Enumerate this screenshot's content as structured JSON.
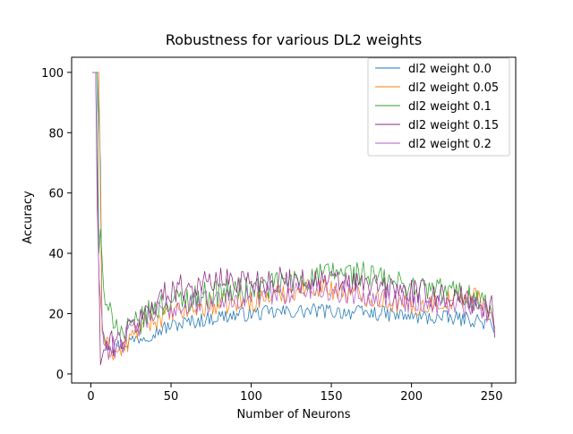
{
  "chart_data": {
    "type": "line",
    "title": "Robustness for various DL2 weights",
    "xlabel": "Number of Neurons",
    "ylabel": "Accuracy",
    "xlim": [
      -12,
      265
    ],
    "ylim": [
      -3,
      105
    ],
    "xticks": [
      0,
      50,
      100,
      150,
      200,
      250
    ],
    "yticks": [
      0,
      20,
      40,
      60,
      80,
      100
    ],
    "grid": false,
    "legend_position": "top-right",
    "x_range": [
      1,
      252
    ],
    "series": [
      {
        "name": "dl2 weight 0.0",
        "color": "#1f77b4",
        "anchors": [
          [
            1,
            100
          ],
          [
            4,
            100
          ],
          [
            6,
            70
          ],
          [
            7,
            15
          ],
          [
            10,
            10
          ],
          [
            15,
            9
          ],
          [
            20,
            10
          ],
          [
            25,
            11
          ],
          [
            30,
            12
          ],
          [
            40,
            14
          ],
          [
            50,
            16
          ],
          [
            60,
            17
          ],
          [
            70,
            18
          ],
          [
            80,
            19
          ],
          [
            100,
            20
          ],
          [
            120,
            20.5
          ],
          [
            140,
            21
          ],
          [
            160,
            20.5
          ],
          [
            180,
            20
          ],
          [
            200,
            19
          ],
          [
            220,
            18.5
          ],
          [
            240,
            18
          ],
          [
            250,
            16
          ],
          [
            252,
            13
          ]
        ],
        "noise": 2.5
      },
      {
        "name": "dl2 weight 0.05",
        "color": "#ff7f0e",
        "anchors": [
          [
            1,
            100
          ],
          [
            5,
            100
          ],
          [
            6,
            60
          ],
          [
            7,
            14
          ],
          [
            10,
            9
          ],
          [
            15,
            7
          ],
          [
            20,
            8
          ],
          [
            25,
            12
          ],
          [
            30,
            15
          ],
          [
            40,
            18
          ],
          [
            50,
            20
          ],
          [
            60,
            21
          ],
          [
            70,
            22
          ],
          [
            80,
            23
          ],
          [
            100,
            24
          ],
          [
            120,
            27
          ],
          [
            140,
            29
          ],
          [
            160,
            27
          ],
          [
            180,
            25
          ],
          [
            200,
            22
          ],
          [
            220,
            24
          ],
          [
            240,
            26
          ],
          [
            250,
            20
          ],
          [
            252,
            14
          ]
        ],
        "noise": 3.5
      },
      {
        "name": "dl2 weight 0.1",
        "color": "#2ca02c",
        "anchors": [
          [
            1,
            100
          ],
          [
            4,
            100
          ],
          [
            5,
            40
          ],
          [
            6,
            48
          ],
          [
            8,
            28
          ],
          [
            10,
            20
          ],
          [
            15,
            19
          ],
          [
            20,
            13
          ],
          [
            30,
            17
          ],
          [
            40,
            22
          ],
          [
            50,
            24
          ],
          [
            60,
            25
          ],
          [
            80,
            27
          ],
          [
            100,
            28
          ],
          [
            120,
            30
          ],
          [
            140,
            32
          ],
          [
            155,
            34
          ],
          [
            170,
            33
          ],
          [
            190,
            30
          ],
          [
            210,
            28
          ],
          [
            230,
            27
          ],
          [
            245,
            24
          ],
          [
            250,
            20
          ],
          [
            252,
            15
          ]
        ],
        "noise": 4.5
      },
      {
        "name": "dl2 weight 0.15",
        "color": "#8b2a7f",
        "anchors": [
          [
            1,
            100
          ],
          [
            3,
            100
          ],
          [
            4,
            55
          ],
          [
            5,
            35
          ],
          [
            6,
            3
          ],
          [
            8,
            8
          ],
          [
            12,
            10
          ],
          [
            20,
            12
          ],
          [
            30,
            18
          ],
          [
            40,
            24
          ],
          [
            50,
            28
          ],
          [
            60,
            29
          ],
          [
            80,
            31
          ],
          [
            100,
            31
          ],
          [
            120,
            31
          ],
          [
            140,
            31
          ],
          [
            160,
            30
          ],
          [
            180,
            29
          ],
          [
            200,
            27
          ],
          [
            220,
            26
          ],
          [
            240,
            24
          ],
          [
            248,
            20
          ],
          [
            250,
            26
          ],
          [
            252,
            12
          ]
        ],
        "noise": 4.5
      },
      {
        "name": "dl2 weight 0.2",
        "color": "#b25cc9",
        "anchors": [
          [
            1,
            100
          ],
          [
            3,
            100
          ],
          [
            5,
            33
          ],
          [
            8,
            10
          ],
          [
            12,
            8
          ],
          [
            20,
            11
          ],
          [
            30,
            16
          ],
          [
            40,
            20
          ],
          [
            50,
            22
          ],
          [
            60,
            23
          ],
          [
            80,
            25
          ],
          [
            100,
            26
          ],
          [
            120,
            27
          ],
          [
            140,
            28
          ],
          [
            160,
            27
          ],
          [
            180,
            26
          ],
          [
            200,
            24
          ],
          [
            220,
            23
          ],
          [
            240,
            22
          ],
          [
            250,
            20
          ],
          [
            252,
            13
          ]
        ],
        "noise": 4.0
      }
    ]
  }
}
